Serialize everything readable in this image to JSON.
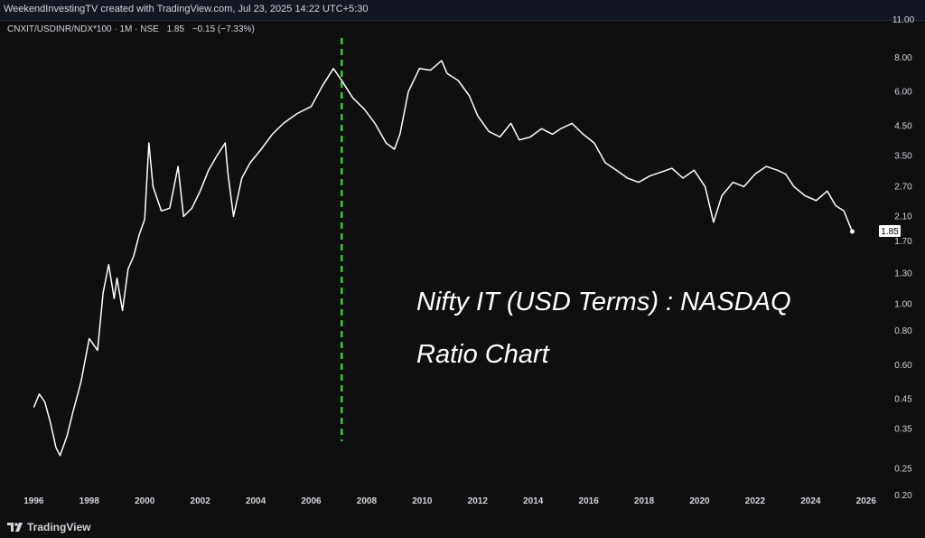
{
  "header": {
    "title": "WeekendInvestingTV created with TradingView.com, Jul 23, 2025 14:22 UTC+5:30"
  },
  "symbol_bar": {
    "symbol": "CNXIT/USDINR/NDX*100 · 1M · NSE",
    "last": "1.85",
    "change": "−0.15 (−7.33%)"
  },
  "annotation": {
    "line1": "Nifty IT (USD Terms) : NASDAQ",
    "line2": "Ratio Chart"
  },
  "footer": {
    "brand": "TradingView"
  },
  "colors": {
    "background": "#0f0f0f",
    "series": "#ffffff",
    "marker": "#32cd32",
    "text": "#d1d4dc"
  },
  "chart_data": {
    "type": "line",
    "title": "",
    "y_scale": "log",
    "ylim": [
      0.2,
      11.0
    ],
    "xlim": [
      1995.5,
      2026.3
    ],
    "y_ticks": [
      0.2,
      0.25,
      0.35,
      0.45,
      0.6,
      0.8,
      1.0,
      1.3,
      1.7,
      2.1,
      2.7,
      3.5,
      4.5,
      6.0,
      8.0,
      11.0
    ],
    "y_tick_labels": [
      "0.20",
      "0.25",
      "0.35",
      "0.45",
      "0.60",
      "0.80",
      "1.00",
      "1.30",
      "1.70",
      "2.10",
      "2.70",
      "3.50",
      "4.50",
      "6.00",
      "8.00",
      "11.00"
    ],
    "x_ticks": [
      1996,
      1998,
      2000,
      2002,
      2004,
      2006,
      2008,
      2010,
      2012,
      2014,
      2016,
      2018,
      2020,
      2022,
      2024,
      2026
    ],
    "last_value_label": "1.85",
    "marker_year": 2007.1,
    "series": [
      {
        "x": [
          1996.0,
          1996.2,
          1996.4,
          1996.6,
          1996.8,
          1996.95,
          1997.2,
          1997.4,
          1997.7,
          1998.0,
          1998.3,
          1998.5,
          1998.7,
          1998.9,
          1999.0,
          1999.2,
          1999.4,
          1999.6,
          1999.8,
          2000.0,
          2000.15,
          2000.3,
          2000.6,
          2000.9,
          2001.2,
          2001.4,
          2001.7,
          2002.0,
          2002.3,
          2002.6,
          2002.9,
          2003.0,
          2003.2,
          2003.5,
          2003.8,
          2004.2,
          2004.6,
          2005.0,
          2005.5,
          2006.0,
          2006.4,
          2006.8,
          2007.1,
          2007.5,
          2007.9,
          2008.3,
          2008.7,
          2009.0,
          2009.2,
          2009.5,
          2009.9,
          2010.3,
          2010.7,
          2010.9,
          2011.3,
          2011.7,
          2012.0,
          2012.4,
          2012.8,
          2013.2,
          2013.5,
          2013.9,
          2014.3,
          2014.7,
          2015.0,
          2015.4,
          2015.8,
          2016.2,
          2016.6,
          2017.0,
          2017.4,
          2017.8,
          2018.2,
          2018.6,
          2019.0,
          2019.4,
          2019.8,
          2020.2,
          2020.5,
          2020.8,
          2021.2,
          2021.6,
          2022.0,
          2022.4,
          2022.8,
          2023.1,
          2023.4,
          2023.8,
          2024.2,
          2024.6,
          2024.9,
          2025.2,
          2025.5
        ],
        "values": [
          0.42,
          0.47,
          0.44,
          0.37,
          0.3,
          0.28,
          0.33,
          0.4,
          0.52,
          0.75,
          0.68,
          1.1,
          1.4,
          1.05,
          1.25,
          0.95,
          1.35,
          1.5,
          1.8,
          2.05,
          3.9,
          2.7,
          2.2,
          2.25,
          3.2,
          2.1,
          2.25,
          2.6,
          3.1,
          3.5,
          3.9,
          3.0,
          2.1,
          2.9,
          3.3,
          3.7,
          4.2,
          4.6,
          5.0,
          5.3,
          6.3,
          7.3,
          6.6,
          5.7,
          5.2,
          4.6,
          3.9,
          3.7,
          4.2,
          6.0,
          7.3,
          7.2,
          7.8,
          7.0,
          6.6,
          5.8,
          4.9,
          4.3,
          4.1,
          4.6,
          4.0,
          4.1,
          4.4,
          4.2,
          4.4,
          4.6,
          4.2,
          3.9,
          3.3,
          3.1,
          2.9,
          2.8,
          2.95,
          3.05,
          3.15,
          2.9,
          3.1,
          2.7,
          2.0,
          2.5,
          2.8,
          2.7,
          3.0,
          3.2,
          3.1,
          3.0,
          2.7,
          2.5,
          2.4,
          2.6,
          2.3,
          2.2,
          1.85
        ]
      }
    ]
  }
}
